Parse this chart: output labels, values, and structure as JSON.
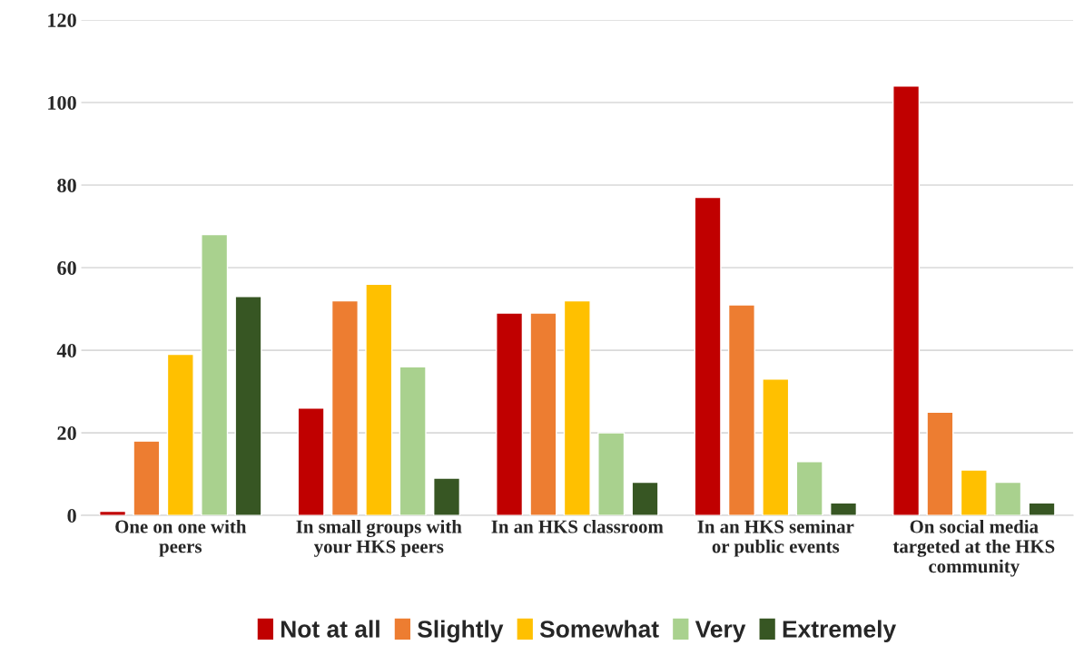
{
  "chart_data": {
    "type": "bar",
    "categories": [
      "One on one with\npeers",
      "In small groups with\nyour HKS peers",
      "In an HKS classroom",
      "In an HKS seminar\nor public events",
      "On social media\ntargeted at the HKS\ncommunity"
    ],
    "series": [
      {
        "name": "Not at all",
        "color": "#c00000",
        "values": [
          1,
          26,
          49,
          77,
          104
        ]
      },
      {
        "name": "Slightly",
        "color": "#ed7d31",
        "values": [
          18,
          52,
          49,
          51,
          25
        ]
      },
      {
        "name": "Somewhat",
        "color": "#ffc000",
        "values": [
          39,
          56,
          52,
          33,
          11
        ]
      },
      {
        "name": "Very",
        "color": "#a9d18e",
        "values": [
          68,
          36,
          20,
          13,
          8
        ]
      },
      {
        "name": "Extremely",
        "color": "#375623",
        "values": [
          53,
          9,
          8,
          3,
          3
        ]
      }
    ],
    "ylim": [
      0,
      120
    ],
    "yticks": [
      0,
      20,
      40,
      60,
      80,
      100,
      120
    ],
    "grid": "y",
    "legend": "bottom"
  }
}
